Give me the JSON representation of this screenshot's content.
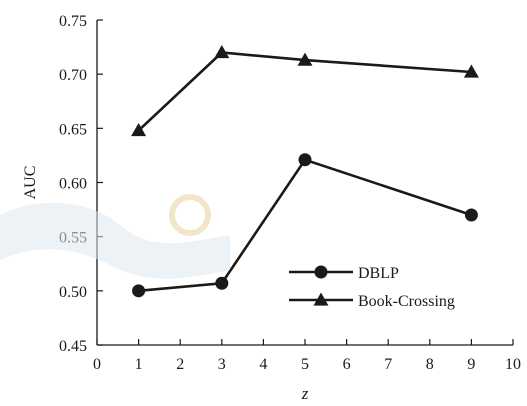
{
  "chart_data": {
    "type": "line",
    "xlabel": "z",
    "ylabel": "AUC",
    "xlim": [
      0,
      10
    ],
    "ylim": [
      0.45,
      0.75
    ],
    "x_ticks": [
      0,
      1,
      2,
      3,
      4,
      5,
      6,
      7,
      8,
      9,
      10
    ],
    "y_ticks": [
      0.45,
      0.5,
      0.55,
      0.6,
      0.65,
      0.7,
      0.75
    ],
    "y_tick_labels": [
      "0.45",
      "0.50",
      "0.55",
      "0.60",
      "0.65",
      "0.70",
      "0.75"
    ],
    "grid": false,
    "legend_position": "lower-right",
    "series": [
      {
        "name": "DBLP",
        "marker": "circle",
        "x": [
          1,
          3,
          5,
          9
        ],
        "y": [
          0.5,
          0.507,
          0.621,
          0.57
        ]
      },
      {
        "name": "Book-Crossing",
        "marker": "triangle",
        "x": [
          1,
          3,
          5,
          9
        ],
        "y": [
          0.648,
          0.72,
          0.713,
          0.702
        ]
      }
    ],
    "colors": {
      "line": "#1a1a1a",
      "axis": "#1a1a1a"
    }
  }
}
